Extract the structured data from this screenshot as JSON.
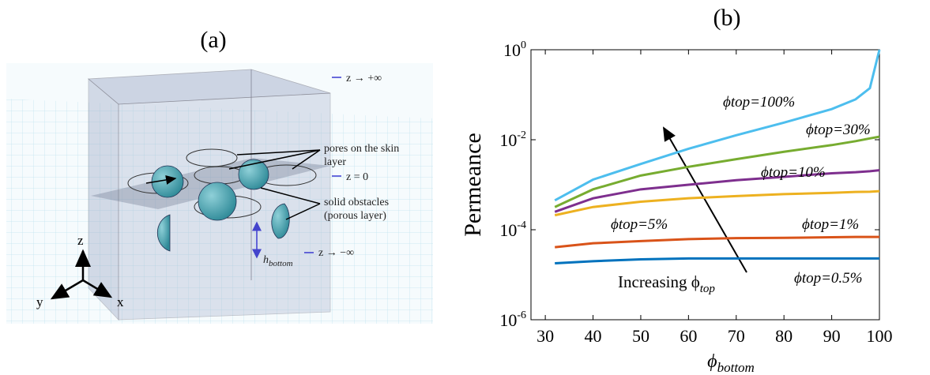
{
  "panel_a": {
    "label": "(a)",
    "annotations": {
      "z_top": "z → +∞",
      "pores": [
        "pores on the skin",
        "layer"
      ],
      "z_zero": "z = 0",
      "obstacles": [
        "solid obstacles",
        "(porous layer)"
      ],
      "z_bottom": "z → −∞",
      "h_symbol": "h",
      "h_sub": "bottom",
      "axis_z": "z",
      "axis_y": "y",
      "axis_x": "x"
    }
  },
  "chart_data": {
    "type": "line",
    "title": "(b)",
    "y_label": "Permeance",
    "x_label": "ϕ",
    "x_label_sub": "bottom",
    "log_y": true,
    "annotation": "Increasing ϕ",
    "annotation_sub": "top",
    "x": [
      32,
      40,
      50,
      60,
      70,
      80,
      90,
      95,
      98,
      100
    ],
    "xlim": [
      27,
      100
    ],
    "xticks": [
      30,
      40,
      50,
      60,
      70,
      80,
      90,
      100
    ],
    "ylim": [
      1e-06,
      1
    ],
    "yticks": [
      {
        "value": 1e-06,
        "label": "10",
        "label_exponent": "-6"
      },
      {
        "value": 0.0001,
        "label": "10",
        "label_exponent": "-4"
      },
      {
        "value": 0.01,
        "label": "10",
        "label_exponent": "-2"
      },
      {
        "value": 1,
        "label": "10",
        "label_exponent": "0"
      }
    ],
    "series": [
      {
        "name": "ϕtop=100%",
        "color": "#4dbeee",
        "values": [
          0.00045,
          0.0013,
          0.0029,
          0.0063,
          0.0126,
          0.024,
          0.048,
          0.079,
          0.14,
          1
        ]
      },
      {
        "name": "ϕtop=30%",
        "color": "#77ac30",
        "values": [
          0.00032,
          0.00079,
          0.0016,
          0.0025,
          0.0037,
          0.0054,
          0.0076,
          0.0093,
          0.0107,
          0.0117
        ]
      },
      {
        "name": "ϕtop=10%",
        "color": "#7e2f8e",
        "values": [
          0.00025,
          0.0005,
          0.00079,
          0.001,
          0.00126,
          0.0015,
          0.0018,
          0.0019,
          0.002,
          0.0021
        ]
      },
      {
        "name": "ϕtop=5%",
        "color": "#edb120",
        "values": [
          0.00021,
          0.00032,
          0.00042,
          0.0005,
          0.00056,
          0.00062,
          0.00066,
          0.00069,
          0.0007,
          0.00072
        ]
      },
      {
        "name": "ϕtop=1%",
        "color": "#d95319",
        "values": [
          4.1e-05,
          5e-05,
          5.6e-05,
          6.2e-05,
          6.5e-05,
          6.6e-05,
          6.8e-05,
          6.9e-05,
          6.9e-05,
          6.9e-05
        ]
      },
      {
        "name": "ϕtop=0.5%",
        "color": "#0072bd",
        "values": [
          1.8e-05,
          2e-05,
          2.2e-05,
          2.3e-05,
          2.3e-05,
          2.3e-05,
          2.3e-05,
          2.3e-05,
          2.3e-05,
          2.3e-05
        ]
      }
    ]
  }
}
